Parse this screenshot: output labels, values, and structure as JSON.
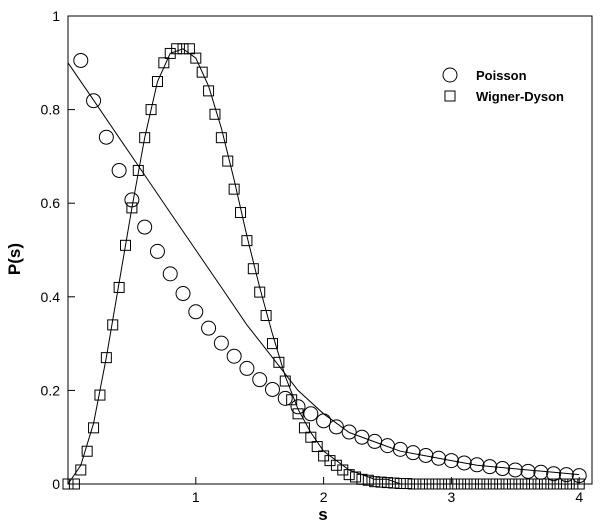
{
  "chart_data": {
    "type": "scatter",
    "title": "",
    "xlabel": "s",
    "ylabel": "P(s)",
    "xlim": [
      0,
      4.1
    ],
    "ylim": [
      0,
      1
    ],
    "x_ticks": [
      1,
      2,
      3,
      4
    ],
    "y_ticks": [
      0,
      0.2,
      0.4,
      0.6,
      0.8,
      1
    ],
    "x_tick_labels": [
      "1",
      "2",
      "3",
      "4"
    ],
    "y_tick_labels": [
      "0",
      "0.2",
      "0.4",
      "0.6",
      "0.8",
      "1"
    ],
    "grid": false,
    "legend_position": "top-right",
    "series": [
      {
        "name": "Poisson",
        "marker": "circle",
        "x": [
          0.1,
          0.2,
          0.3,
          0.4,
          0.5,
          0.6,
          0.7,
          0.8,
          0.9,
          1.0,
          1.1,
          1.2,
          1.3,
          1.4,
          1.5,
          1.6,
          1.7,
          1.8,
          1.9,
          2.0,
          2.1,
          2.2,
          2.3,
          2.4,
          2.5,
          2.6,
          2.7,
          2.8,
          2.9,
          3.0,
          3.1,
          3.2,
          3.3,
          3.4,
          3.5,
          3.6,
          3.7,
          3.8,
          3.9,
          4.0
        ],
        "y": [
          0.905,
          0.819,
          0.741,
          0.67,
          0.607,
          0.549,
          0.497,
          0.449,
          0.407,
          0.368,
          0.333,
          0.301,
          0.273,
          0.247,
          0.223,
          0.202,
          0.183,
          0.165,
          0.15,
          0.135,
          0.122,
          0.111,
          0.1,
          0.091,
          0.082,
          0.074,
          0.067,
          0.061,
          0.055,
          0.05,
          0.045,
          0.041,
          0.037,
          0.033,
          0.03,
          0.027,
          0.025,
          0.022,
          0.02,
          0.018
        ]
      },
      {
        "name": "Wigner-Dyson",
        "marker": "square",
        "x": [
          0.0,
          0.05,
          0.1,
          0.15,
          0.2,
          0.25,
          0.3,
          0.35,
          0.4,
          0.45,
          0.5,
          0.55,
          0.6,
          0.65,
          0.7,
          0.75,
          0.8,
          0.85,
          0.9,
          0.95,
          1.0,
          1.05,
          1.1,
          1.15,
          1.2,
          1.25,
          1.3,
          1.35,
          1.4,
          1.45,
          1.5,
          1.55,
          1.6,
          1.65,
          1.7,
          1.75,
          1.8,
          1.85,
          1.9,
          1.95,
          2.0,
          2.05,
          2.1,
          2.15,
          2.2,
          2.25,
          2.3,
          2.35,
          2.4,
          2.45,
          2.5,
          2.55,
          2.6,
          2.65,
          2.7,
          2.75,
          2.8,
          2.85,
          2.9,
          2.95,
          3.0,
          3.05,
          3.1,
          3.15,
          3.2,
          3.25,
          3.3,
          3.35,
          3.4,
          3.45,
          3.5,
          3.55,
          3.6,
          3.65,
          3.7,
          3.75,
          3.8,
          3.85,
          3.9,
          3.95,
          4.0
        ],
        "y": [
          0.0,
          0.0,
          0.03,
          0.07,
          0.12,
          0.19,
          0.27,
          0.34,
          0.42,
          0.51,
          0.59,
          0.67,
          0.74,
          0.8,
          0.86,
          0.9,
          0.92,
          0.93,
          0.93,
          0.93,
          0.91,
          0.88,
          0.84,
          0.79,
          0.74,
          0.69,
          0.63,
          0.58,
          0.52,
          0.46,
          0.41,
          0.36,
          0.3,
          0.26,
          0.22,
          0.18,
          0.15,
          0.12,
          0.1,
          0.08,
          0.06,
          0.05,
          0.04,
          0.03,
          0.02,
          0.015,
          0.01,
          0.008,
          0.005,
          0.004,
          0.003,
          0.002,
          0.001,
          0.001,
          0.0,
          0.0,
          0.0,
          0.0,
          0.0,
          0.0,
          0.0,
          0.0,
          0.0,
          0.0,
          0.0,
          0.0,
          0.0,
          0.0,
          0.0,
          0.0,
          0.0,
          0.0,
          0.0,
          0.0,
          0.0,
          0.0,
          0.0,
          0.0,
          0.0,
          0.0,
          0.0
        ]
      },
      {
        "type": "line",
        "x": [
          0.0,
          0.2,
          0.4,
          0.6,
          0.8,
          1.0,
          1.2,
          1.4,
          1.6,
          1.8,
          2.0,
          2.2,
          2.4,
          2.6,
          2.8,
          3.0,
          3.2,
          3.4,
          3.6,
          3.8,
          4.0
        ],
        "y": [
          0.9,
          0.82,
          0.74,
          0.66,
          0.58,
          0.5,
          0.42,
          0.34,
          0.27,
          0.2,
          0.15,
          0.11,
          0.09,
          0.07,
          0.06,
          0.05,
          0.04,
          0.035,
          0.03,
          0.025,
          0.02
        ]
      },
      {
        "type": "line",
        "x": [
          0.0,
          0.1,
          0.2,
          0.3,
          0.4,
          0.5,
          0.6,
          0.7,
          0.8,
          0.9,
          1.0,
          1.1,
          1.2,
          1.3,
          1.4,
          1.5,
          1.6,
          1.7,
          1.8,
          1.9,
          2.0,
          2.1,
          2.2,
          2.3,
          2.4,
          2.5,
          2.6,
          2.8,
          3.0,
          3.5,
          4.0
        ],
        "y": [
          0.0,
          0.04,
          0.13,
          0.27,
          0.43,
          0.59,
          0.74,
          0.86,
          0.92,
          0.93,
          0.91,
          0.85,
          0.76,
          0.65,
          0.53,
          0.42,
          0.32,
          0.23,
          0.16,
          0.11,
          0.07,
          0.05,
          0.03,
          0.02,
          0.01,
          0.01,
          0.0,
          0.0,
          0.0,
          0.0,
          0.0
        ]
      }
    ]
  }
}
